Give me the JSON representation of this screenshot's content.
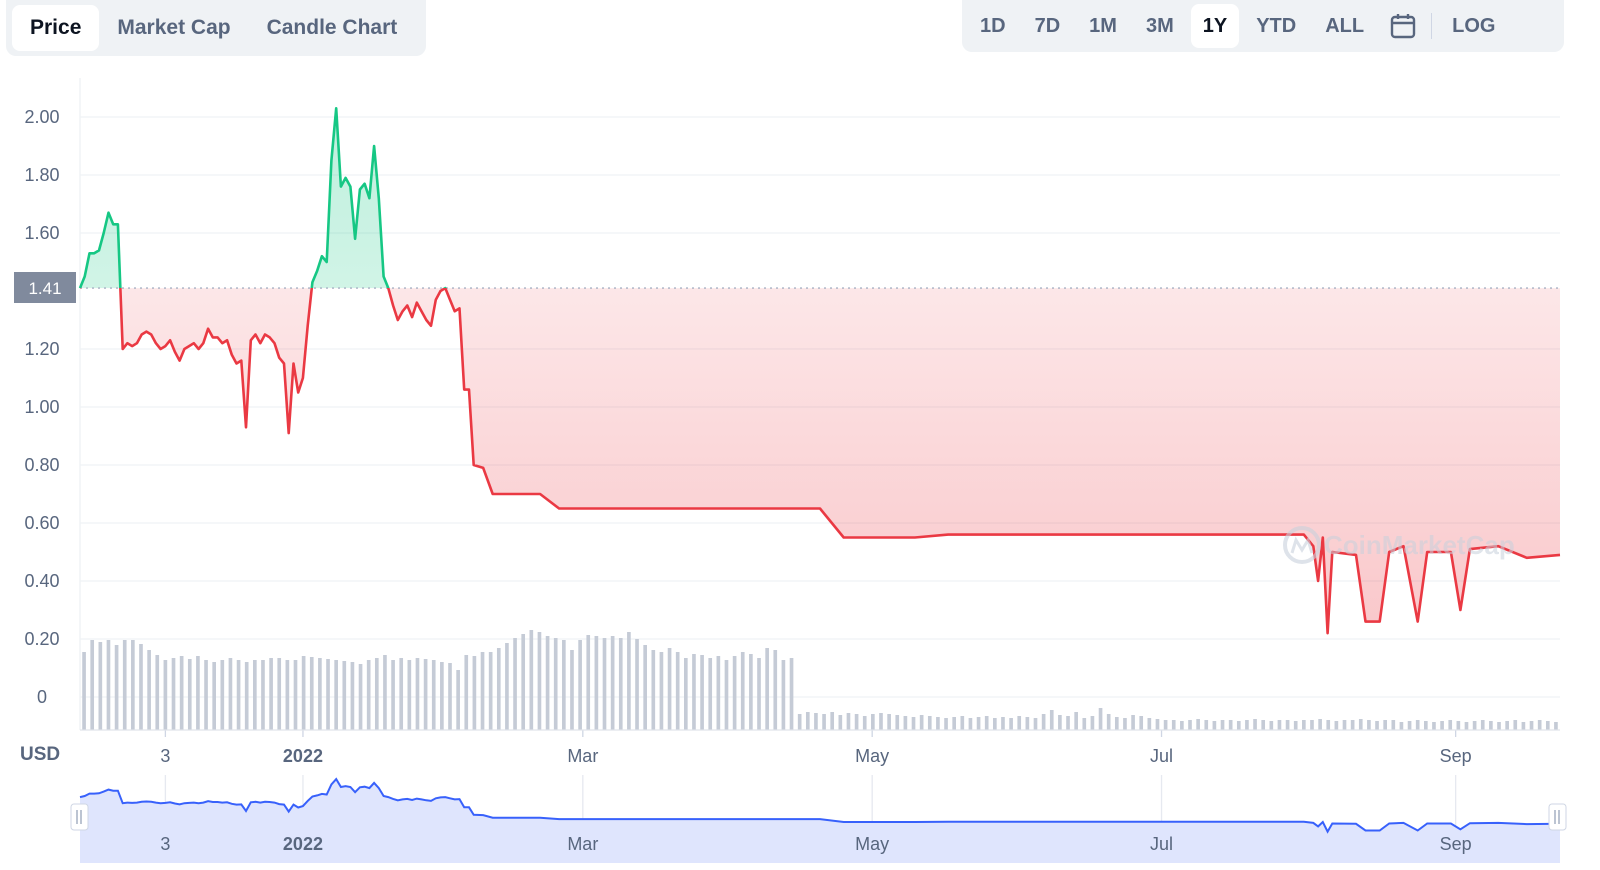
{
  "chart_tabs": [
    "Price",
    "Market Cap",
    "Candle Chart"
  ],
  "active_tab": "Price",
  "ranges": [
    "1D",
    "7D",
    "1M",
    "3M",
    "1Y",
    "YTD",
    "ALL"
  ],
  "active_range": "1Y",
  "log_label": "LOG",
  "icons": {
    "calendar": "calendar-icon",
    "watermark": "coinmarketcap-logo"
  },
  "watermark_text": "CoinMarketCap",
  "currency_label": "USD",
  "colors": {
    "up": "#16c784",
    "down": "#ea3943",
    "navigator": "#3861fb",
    "volume": "#c5cbd6",
    "current_label_bg": "#808a9d"
  },
  "chart_data": {
    "type": "line",
    "title": "",
    "xlabel": "",
    "ylabel": "",
    "ylim": [
      -0.12,
      2.2
    ],
    "yticks": [
      0,
      0.2,
      0.4,
      0.6,
      0.8,
      1.0,
      1.2,
      1.6,
      1.8,
      2.0
    ],
    "ytick_labels": [
      "0",
      "0.20",
      "0.40",
      "0.60",
      "0.80",
      "1.00",
      "1.20",
      "1.60",
      "1.80",
      "2.00"
    ],
    "reference_value": 1.41,
    "reference_label": "1.41",
    "x_start": "2021-11-15",
    "x_end": "2022-09-23",
    "xticks": [
      {
        "date": "2021-12-03",
        "label": "3",
        "bold": false
      },
      {
        "date": "2022-01-01",
        "label": "2022",
        "bold": true
      },
      {
        "date": "2022-03-01",
        "label": "Mar",
        "bold": false
      },
      {
        "date": "2022-05-01",
        "label": "May",
        "bold": false
      },
      {
        "date": "2022-07-01",
        "label": "Jul",
        "bold": false
      },
      {
        "date": "2022-09-01",
        "label": "Sep",
        "bold": false
      }
    ],
    "series": [
      {
        "points": [
          [
            "2021-11-15",
            1.41
          ],
          [
            "2021-11-16",
            1.45
          ],
          [
            "2021-11-17",
            1.53
          ],
          [
            "2021-11-18",
            1.53
          ],
          [
            "2021-11-19",
            1.54
          ],
          [
            "2021-11-20",
            1.6
          ],
          [
            "2021-11-21",
            1.67
          ],
          [
            "2021-11-22",
            1.63
          ],
          [
            "2021-11-23",
            1.63
          ],
          [
            "2021-11-24",
            1.2
          ],
          [
            "2021-11-25",
            1.22
          ],
          [
            "2021-11-26",
            1.21
          ],
          [
            "2021-11-27",
            1.22
          ],
          [
            "2021-11-28",
            1.25
          ],
          [
            "2021-11-29",
            1.26
          ],
          [
            "2021-11-30",
            1.25
          ],
          [
            "2021-12-01",
            1.22
          ],
          [
            "2021-12-02",
            1.2
          ],
          [
            "2021-12-03",
            1.21
          ],
          [
            "2021-12-04",
            1.23
          ],
          [
            "2021-12-05",
            1.19
          ],
          [
            "2021-12-06",
            1.16
          ],
          [
            "2021-12-07",
            1.2
          ],
          [
            "2021-12-08",
            1.21
          ],
          [
            "2021-12-09",
            1.22
          ],
          [
            "2021-12-10",
            1.2
          ],
          [
            "2021-12-11",
            1.22
          ],
          [
            "2021-12-12",
            1.27
          ],
          [
            "2021-12-13",
            1.24
          ],
          [
            "2021-12-14",
            1.24
          ],
          [
            "2021-12-15",
            1.22
          ],
          [
            "2021-12-16",
            1.23
          ],
          [
            "2021-12-17",
            1.18
          ],
          [
            "2021-12-18",
            1.15
          ],
          [
            "2021-12-19",
            1.16
          ],
          [
            "2021-12-20",
            0.93
          ],
          [
            "2021-12-21",
            1.23
          ],
          [
            "2021-12-22",
            1.25
          ],
          [
            "2021-12-23",
            1.22
          ],
          [
            "2021-12-24",
            1.25
          ],
          [
            "2021-12-25",
            1.24
          ],
          [
            "2021-12-26",
            1.22
          ],
          [
            "2021-12-27",
            1.17
          ],
          [
            "2021-12-28",
            1.15
          ],
          [
            "2021-12-29",
            0.91
          ],
          [
            "2021-12-30",
            1.15
          ],
          [
            "2021-12-31",
            1.05
          ],
          [
            "2022-01-01",
            1.1
          ],
          [
            "2022-01-02",
            1.28
          ],
          [
            "2022-01-03",
            1.43
          ],
          [
            "2022-01-04",
            1.47
          ],
          [
            "2022-01-05",
            1.52
          ],
          [
            "2022-01-06",
            1.5
          ],
          [
            "2022-01-07",
            1.85
          ],
          [
            "2022-01-08",
            2.03
          ],
          [
            "2022-01-09",
            1.76
          ],
          [
            "2022-01-10",
            1.79
          ],
          [
            "2022-01-11",
            1.76
          ],
          [
            "2022-01-12",
            1.58
          ],
          [
            "2022-01-13",
            1.75
          ],
          [
            "2022-01-14",
            1.77
          ],
          [
            "2022-01-15",
            1.72
          ],
          [
            "2022-01-16",
            1.9
          ],
          [
            "2022-01-17",
            1.72
          ],
          [
            "2022-01-18",
            1.45
          ],
          [
            "2022-01-19",
            1.41
          ],
          [
            "2022-01-20",
            1.35
          ],
          [
            "2022-01-21",
            1.3
          ],
          [
            "2022-01-22",
            1.33
          ],
          [
            "2022-01-23",
            1.35
          ],
          [
            "2022-01-24",
            1.31
          ],
          [
            "2022-01-25",
            1.36
          ],
          [
            "2022-01-26",
            1.33
          ],
          [
            "2022-01-27",
            1.3
          ],
          [
            "2022-01-28",
            1.28
          ],
          [
            "2022-01-29",
            1.37
          ],
          [
            "2022-01-30",
            1.4
          ],
          [
            "2022-01-31",
            1.41
          ],
          [
            "2022-02-01",
            1.37
          ],
          [
            "2022-02-02",
            1.33
          ],
          [
            "2022-02-03",
            1.34
          ],
          [
            "2022-02-04",
            1.06
          ],
          [
            "2022-02-05",
            1.06
          ],
          [
            "2022-02-06",
            0.8
          ],
          [
            "2022-02-08",
            0.79
          ],
          [
            "2022-02-10",
            0.7
          ],
          [
            "2022-02-20",
            0.7
          ],
          [
            "2022-02-24",
            0.65
          ],
          [
            "2022-03-10",
            0.65
          ],
          [
            "2022-04-10",
            0.65
          ],
          [
            "2022-04-20",
            0.65
          ],
          [
            "2022-04-25",
            0.55
          ],
          [
            "2022-05-10",
            0.55
          ],
          [
            "2022-05-17",
            0.56
          ],
          [
            "2022-06-01",
            0.56
          ],
          [
            "2022-07-01",
            0.56
          ],
          [
            "2022-07-31",
            0.56
          ],
          [
            "2022-08-02",
            0.52
          ],
          [
            "2022-08-03",
            0.4
          ],
          [
            "2022-08-04",
            0.55
          ],
          [
            "2022-08-05",
            0.22
          ],
          [
            "2022-08-06",
            0.5
          ],
          [
            "2022-08-11",
            0.49
          ],
          [
            "2022-08-13",
            0.26
          ],
          [
            "2022-08-16",
            0.26
          ],
          [
            "2022-08-18",
            0.5
          ],
          [
            "2022-08-21",
            0.52
          ],
          [
            "2022-08-24",
            0.26
          ],
          [
            "2022-08-26",
            0.5
          ],
          [
            "2022-08-31",
            0.5
          ],
          [
            "2022-09-02",
            0.3
          ],
          [
            "2022-09-04",
            0.51
          ],
          [
            "2022-09-10",
            0.52
          ],
          [
            "2022-09-16",
            0.48
          ],
          [
            "2022-09-23",
            0.49
          ]
        ]
      }
    ],
    "volume": [
      0.78,
      0.9,
      0.88,
      0.9,
      0.85,
      0.9,
      0.9,
      0.86,
      0.8,
      0.75,
      0.7,
      0.72,
      0.74,
      0.71,
      0.74,
      0.7,
      0.68,
      0.7,
      0.72,
      0.7,
      0.68,
      0.7,
      0.7,
      0.72,
      0.72,
      0.7,
      0.7,
      0.74,
      0.73,
      0.72,
      0.71,
      0.7,
      0.69,
      0.68,
      0.66,
      0.7,
      0.72,
      0.75,
      0.7,
      0.72,
      0.7,
      0.72,
      0.71,
      0.7,
      0.68,
      0.67,
      0.6,
      0.75,
      0.74,
      0.78,
      0.78,
      0.82,
      0.87,
      0.92,
      0.96,
      1.0,
      0.98,
      0.94,
      0.92,
      0.9,
      0.8,
      0.9,
      0.95,
      0.94,
      0.92,
      0.94,
      0.92,
      0.98,
      0.91,
      0.85,
      0.8,
      0.78,
      0.82,
      0.78,
      0.72,
      0.76,
      0.75,
      0.72,
      0.74,
      0.7,
      0.74,
      0.78,
      0.76,
      0.72,
      0.82,
      0.8,
      0.7,
      0.72,
      0.16,
      0.18,
      0.17,
      0.16,
      0.18,
      0.15,
      0.17,
      0.16,
      0.14,
      0.16,
      0.17,
      0.16,
      0.15,
      0.14,
      0.13,
      0.15,
      0.14,
      0.13,
      0.12,
      0.13,
      0.14,
      0.12,
      0.13,
      0.14,
      0.12,
      0.13,
      0.12,
      0.14,
      0.13,
      0.12,
      0.16,
      0.2,
      0.15,
      0.14,
      0.18,
      0.12,
      0.14,
      0.22,
      0.16,
      0.13,
      0.12,
      0.15,
      0.14,
      0.12,
      0.11,
      0.1,
      0.1,
      0.09,
      0.1,
      0.11,
      0.1,
      0.09,
      0.1,
      0.1,
      0.09,
      0.1,
      0.11,
      0.1,
      0.09,
      0.1,
      0.1,
      0.09,
      0.1,
      0.1,
      0.11,
      0.1,
      0.09,
      0.1,
      0.1,
      0.11,
      0.1,
      0.09,
      0.1,
      0.1,
      0.08,
      0.09,
      0.1,
      0.09,
      0.08,
      0.09,
      0.1,
      0.09,
      0.08,
      0.09,
      0.1,
      0.09,
      0.08,
      0.09,
      0.1,
      0.08,
      0.09,
      0.1,
      0.09,
      0.08
    ]
  }
}
